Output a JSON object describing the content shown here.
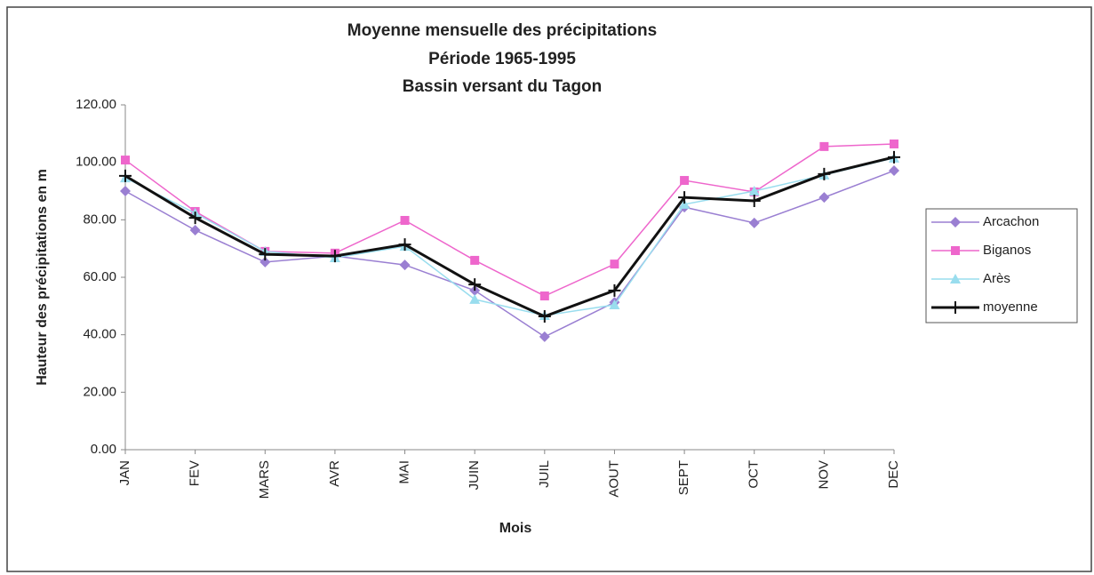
{
  "chart_data": {
    "type": "line",
    "title": [
      "Moyenne mensuelle des précipitations",
      "Période 1965-1995",
      "Bassin versant du Tagon"
    ],
    "xlabel": "Mois",
    "ylabel": "Hauteur des précipitations en m",
    "categories": [
      "JAN",
      "FEV",
      "MARS",
      "AVR",
      "MAI",
      "JUIN",
      "JUIL",
      "AOUT",
      "SEPT",
      "OCT",
      "NOV",
      "DEC"
    ],
    "series": [
      {
        "name": "Arcachon",
        "color": "#9a7fd2",
        "marker": "diamond",
        "values": [
          90,
          76.4,
          65.3,
          67.4,
          64.3,
          55.4,
          39.3,
          51.3,
          84.4,
          78.9,
          87.8,
          97.1
        ]
      },
      {
        "name": "Biganos",
        "color": "#ee66cc",
        "marker": "square",
        "values": [
          100.8,
          82.9,
          69,
          68.4,
          79.8,
          65.9,
          53.5,
          64.6,
          93.7,
          89.7,
          105.5,
          106.4
        ]
      },
      {
        "name": "Arès",
        "color": "#99ddee",
        "marker": "triangle",
        "values": [
          94.6,
          82.3,
          69,
          66.8,
          70.8,
          52.3,
          46.7,
          50.4,
          85.4,
          90,
          95.6,
          101.5
        ]
      },
      {
        "name": "moyenne",
        "color": "#111111",
        "marker": "plus",
        "values": [
          95.3,
          80.7,
          68,
          67.4,
          71.4,
          57.5,
          46.4,
          55.4,
          87.8,
          86.6,
          95.9,
          101.8
        ]
      }
    ],
    "ylim": [
      0,
      120
    ],
    "yticks": [
      {
        "value": 0,
        "label": "0.00"
      },
      {
        "value": 20,
        "label": "20.00"
      },
      {
        "value": 40,
        "label": "40.00"
      },
      {
        "value": 60,
        "label": "60.00"
      },
      {
        "value": 80,
        "label": "80.00"
      },
      {
        "value": 100,
        "label": "100.00"
      },
      {
        "value": 120,
        "label": "120.00"
      }
    ],
    "legend": "right"
  }
}
